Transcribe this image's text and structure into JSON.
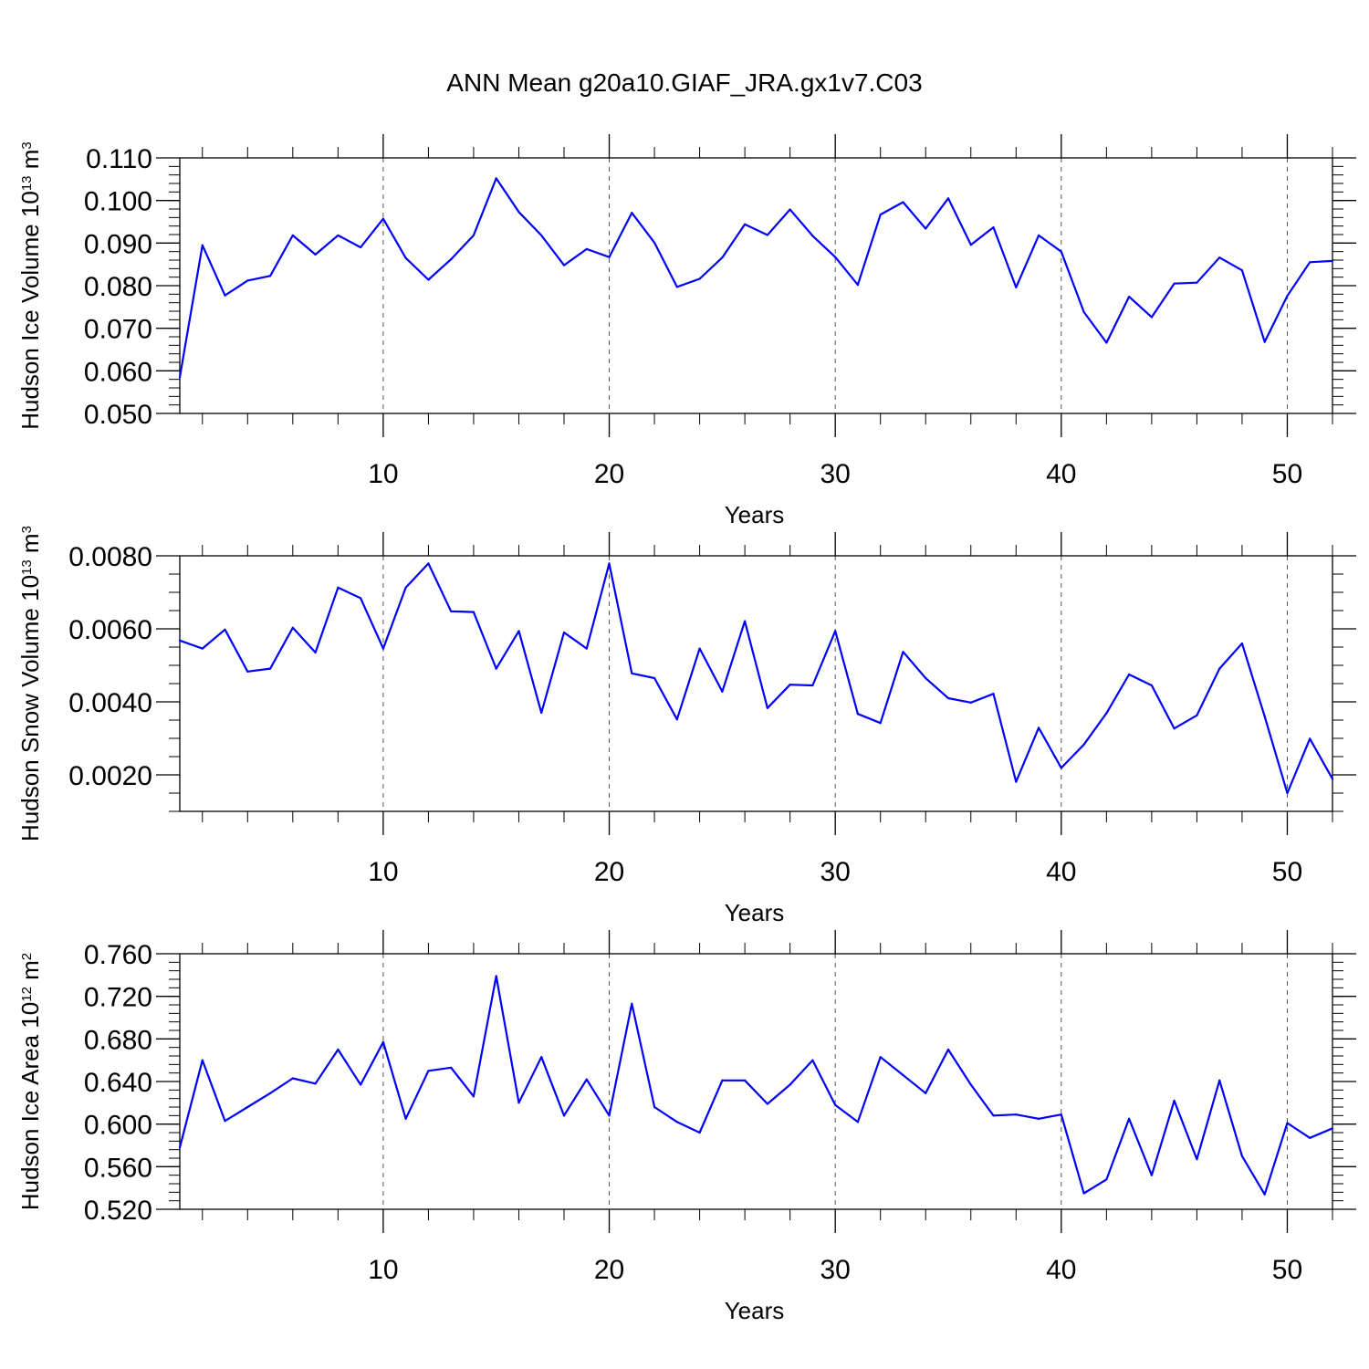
{
  "figure": {
    "title": "ANN Mean g20a10.GIAF_JRA.gx1v7.C03",
    "line_color": "#0000ff"
  },
  "chart_data": [
    {
      "type": "line",
      "ylabel_main": "Hudson Ice Volume 10",
      "ylabel_exp": "13",
      "ylabel_unit": " m",
      "ylabel_unit_exp": "3",
      "xlabel": "Years",
      "xlim": [
        1,
        52
      ],
      "ylim": [
        0.05,
        0.11
      ],
      "x_ticks": [
        10,
        20,
        30,
        40,
        50
      ],
      "x_minor": [
        2,
        4,
        6,
        8,
        12,
        14,
        16,
        18,
        22,
        24,
        26,
        28,
        32,
        34,
        36,
        38,
        42,
        44,
        46,
        48,
        52
      ],
      "y_ticks": [
        0.05,
        0.06,
        0.07,
        0.08,
        0.09,
        0.1,
        0.11
      ],
      "y_tick_labels": [
        "0.050",
        "0.060",
        "0.070",
        "0.080",
        "0.090",
        "0.100",
        "0.110"
      ],
      "y_minor_step": 0.002,
      "series": [
        {
          "x": [
            1,
            2,
            3,
            4,
            5,
            6,
            7,
            8,
            9,
            10,
            11,
            12,
            13,
            14,
            15,
            16,
            17,
            18,
            19,
            20,
            21,
            22,
            23,
            24,
            25,
            26,
            27,
            28,
            29,
            30,
            31,
            32,
            33,
            34,
            35,
            36,
            37,
            38,
            39,
            40,
            41,
            42,
            43,
            44,
            45,
            46,
            47,
            48,
            49,
            50,
            51,
            52
          ],
          "values": [
            0.0585,
            0.0895,
            0.0777,
            0.0812,
            0.0823,
            0.0918,
            0.0873,
            0.0918,
            0.089,
            0.0957,
            0.0865,
            0.0814,
            0.0862,
            0.0918,
            0.1052,
            0.0973,
            0.0918,
            0.0848,
            0.0886,
            0.0867,
            0.0971,
            0.0901,
            0.0797,
            0.0816,
            0.0866,
            0.0944,
            0.0919,
            0.0979,
            0.0917,
            0.0867,
            0.0802,
            0.0967,
            0.0996,
            0.0934,
            0.1005,
            0.0896,
            0.0937,
            0.0796,
            0.0918,
            0.088,
            0.0738,
            0.0666,
            0.0774,
            0.0726,
            0.0805,
            0.0807,
            0.0866,
            0.0836,
            0.0668,
            0.0776,
            0.0855,
            0.0858
          ]
        }
      ]
    },
    {
      "type": "line",
      "ylabel_main": "Hudson Snow Volume 10",
      "ylabel_exp": "13",
      "ylabel_unit": " m",
      "ylabel_unit_exp": "3",
      "xlabel": "Years",
      "xlim": [
        1,
        52
      ],
      "ylim": [
        0.001,
        0.008
      ],
      "x_ticks": [
        10,
        20,
        30,
        40,
        50
      ],
      "x_minor": [
        2,
        4,
        6,
        8,
        12,
        14,
        16,
        18,
        22,
        24,
        26,
        28,
        32,
        34,
        36,
        38,
        42,
        44,
        46,
        48,
        52
      ],
      "y_ticks": [
        0.002,
        0.004,
        0.006,
        0.008
      ],
      "y_tick_labels": [
        "0.0020",
        "0.0040",
        "0.0060",
        "0.0080"
      ],
      "y_minor_step": 0.0005,
      "series": [
        {
          "x": [
            1,
            2,
            3,
            4,
            5,
            6,
            7,
            8,
            9,
            10,
            11,
            12,
            13,
            14,
            15,
            16,
            17,
            18,
            19,
            20,
            21,
            22,
            23,
            24,
            25,
            26,
            27,
            28,
            29,
            30,
            31,
            32,
            33,
            34,
            35,
            36,
            37,
            38,
            39,
            40,
            41,
            42,
            43,
            44,
            45,
            46,
            47,
            48,
            49,
            50,
            51,
            52
          ],
          "values": [
            0.00568,
            0.00546,
            0.00598,
            0.00483,
            0.00491,
            0.00603,
            0.00535,
            0.00713,
            0.00684,
            0.00546,
            0.00713,
            0.00779,
            0.00648,
            0.00646,
            0.00491,
            0.00594,
            0.0037,
            0.0059,
            0.00546,
            0.00779,
            0.00478,
            0.00465,
            0.00352,
            0.00546,
            0.00428,
            0.00621,
            0.00383,
            0.00447,
            0.00445,
            0.00594,
            0.00367,
            0.00342,
            0.00537,
            0.00465,
            0.0041,
            0.00398,
            0.00422,
            0.00181,
            0.00329,
            0.00219,
            0.00283,
            0.00369,
            0.00475,
            0.00445,
            0.00327,
            0.00363,
            0.00491,
            0.0056,
            0.0036,
            0.0015,
            0.00299,
            0.00189
          ]
        }
      ]
    },
    {
      "type": "line",
      "ylabel_main": "Hudson Ice Area 10",
      "ylabel_exp": "12",
      "ylabel_unit": " m",
      "ylabel_unit_exp": "2",
      "xlabel": "Years",
      "xlim": [
        1,
        52
      ],
      "ylim": [
        0.52,
        0.76
      ],
      "x_ticks": [
        10,
        20,
        30,
        40,
        50
      ],
      "x_minor": [
        2,
        4,
        6,
        8,
        12,
        14,
        16,
        18,
        22,
        24,
        26,
        28,
        32,
        34,
        36,
        38,
        42,
        44,
        46,
        48,
        52
      ],
      "y_ticks": [
        0.52,
        0.56,
        0.6,
        0.64,
        0.68,
        0.72,
        0.76
      ],
      "y_tick_labels": [
        "0.520",
        "0.560",
        "0.600",
        "0.640",
        "0.680",
        "0.720",
        "0.760"
      ],
      "y_minor_step": 0.008,
      "series": [
        {
          "x": [
            1,
            2,
            3,
            4,
            5,
            6,
            7,
            8,
            9,
            10,
            11,
            12,
            13,
            14,
            15,
            16,
            17,
            18,
            19,
            20,
            21,
            22,
            23,
            24,
            25,
            26,
            27,
            28,
            29,
            30,
            31,
            32,
            33,
            34,
            35,
            36,
            37,
            38,
            39,
            40,
            41,
            42,
            43,
            44,
            45,
            46,
            47,
            48,
            49,
            50,
            51,
            52
          ],
          "values": [
            0.578,
            0.66,
            0.603,
            0.616,
            0.629,
            0.643,
            0.638,
            0.67,
            0.637,
            0.677,
            0.605,
            0.65,
            0.653,
            0.626,
            0.739,
            0.62,
            0.663,
            0.608,
            0.642,
            0.608,
            0.713,
            0.616,
            0.602,
            0.592,
            0.641,
            0.641,
            0.619,
            0.637,
            0.66,
            0.618,
            0.602,
            0.663,
            0.646,
            0.629,
            0.67,
            0.637,
            0.608,
            0.609,
            0.605,
            0.609,
            0.535,
            0.548,
            0.605,
            0.552,
            0.622,
            0.567,
            0.641,
            0.57,
            0.534,
            0.601,
            0.587,
            0.596
          ]
        }
      ]
    }
  ]
}
